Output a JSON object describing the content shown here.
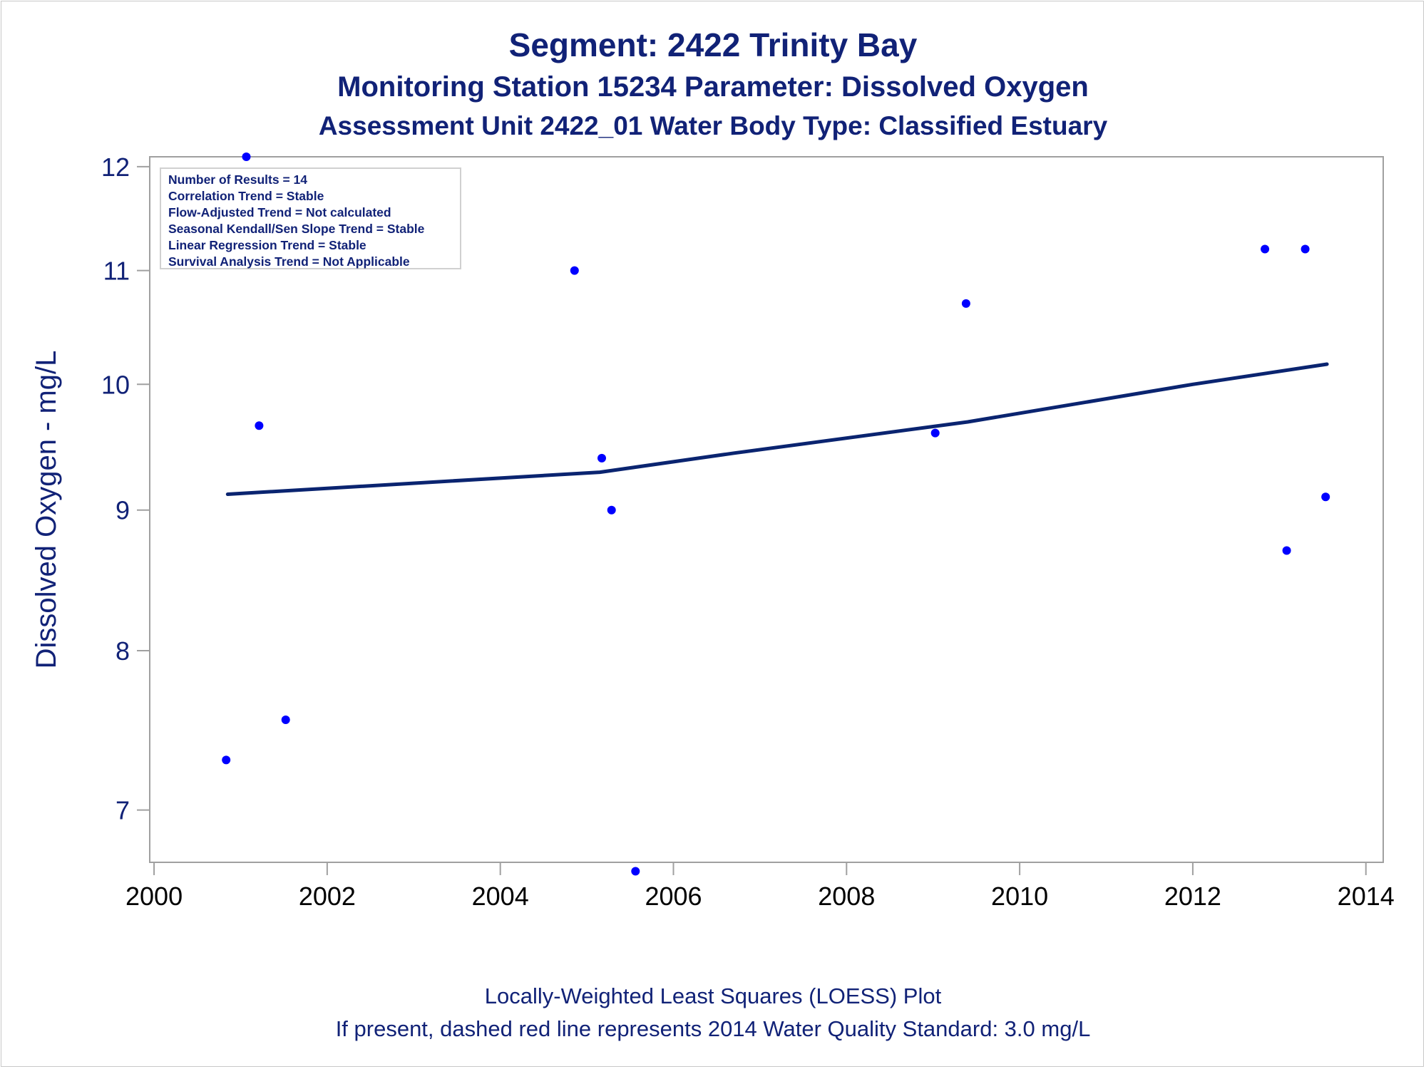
{
  "titles": {
    "line1": "Segment: 2422  Trinity Bay",
    "line2": "Monitoring Station 15234 Parameter: Dissolved Oxygen",
    "line3": "Assessment Unit 2422_01   Water Body Type: Classified Estuary"
  },
  "footnotes": {
    "line1": "Locally-Weighted Least Squares (LOESS) Plot",
    "line2": "If present, dashed red line represents 2014 Water Quality Standard: 3.0 mg/L"
  },
  "stats": [
    "Number of Results = 14",
    "Correlation Trend = Stable",
    "Flow-Adjusted Trend = Not calculated",
    "Seasonal Kendall/Sen Slope Trend = Stable",
    "Linear Regression Trend = Stable",
    "Survival Analysis Trend = Not Applicable"
  ],
  "colors": {
    "points": "#0000ff",
    "loess": "#0a2470",
    "text": "#112277",
    "axis": "#a0a0a0"
  },
  "chart_data": {
    "type": "scatter",
    "title": "Segment: 2422  Trinity Bay",
    "xlabel": "",
    "ylabel": "Dissolved Oxygen - mg/L",
    "y_scale": "log",
    "xlim": [
      1999.95,
      2014.2
    ],
    "ylim": [
      6.7,
      12.1
    ],
    "x_ticks": [
      2000,
      2002,
      2004,
      2006,
      2008,
      2010,
      2012,
      2014
    ],
    "y_ticks": [
      7,
      8,
      9,
      10,
      11,
      12
    ],
    "grid": false,
    "series": [
      {
        "type": "scatter",
        "x": [
          "2000-11-01",
          "2001-01-25",
          "2001-03-20",
          "2001-07-10",
          "2004-11-10",
          "2005-03-05",
          "2005-04-15",
          "2005-07-25",
          "2009-01-10",
          "2009-05-20",
          "2012-11-01",
          "2013-02-01",
          "2013-04-20",
          "2013-07-15"
        ],
        "y": [
          7.3,
          12.1,
          9.66,
          7.55,
          11.0,
          9.4,
          9.0,
          6.65,
          9.6,
          10.7,
          11.2,
          8.7,
          11.2,
          9.1
        ]
      },
      {
        "type": "line",
        "x": [
          2000.85,
          2005.15,
          2006.7,
          2009.4,
          2012.0,
          2013.55
        ],
        "y": [
          9.12,
          9.29,
          9.44,
          9.69,
          10.0,
          10.17
        ]
      }
    ]
  }
}
